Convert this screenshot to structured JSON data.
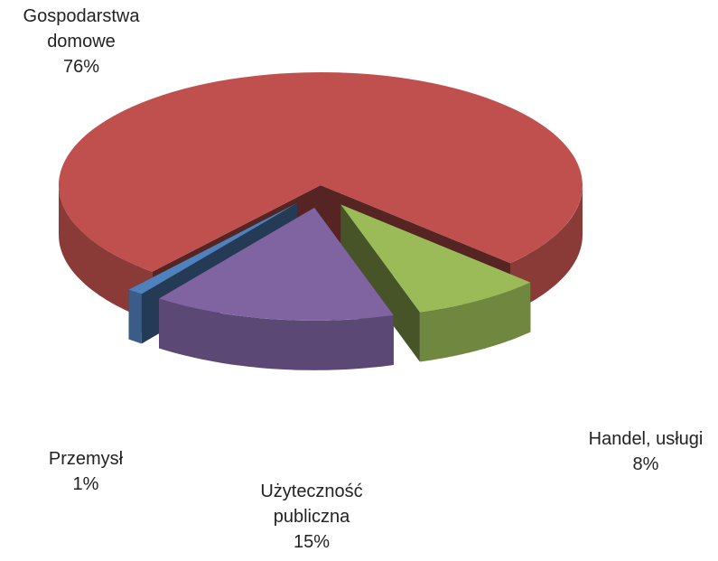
{
  "chart_data": {
    "type": "pie3d",
    "categories": [
      "Gospodarstwa domowe",
      "Handel, usługi",
      "Użyteczność publiczna",
      "Przemysł"
    ],
    "values": [
      76,
      8,
      15,
      1
    ],
    "value_labels": [
      "76%",
      "8%",
      "15%",
      "1%"
    ],
    "colors": [
      "#c0504d",
      "#9bbb59",
      "#8064a2",
      "#4f81bd"
    ]
  }
}
